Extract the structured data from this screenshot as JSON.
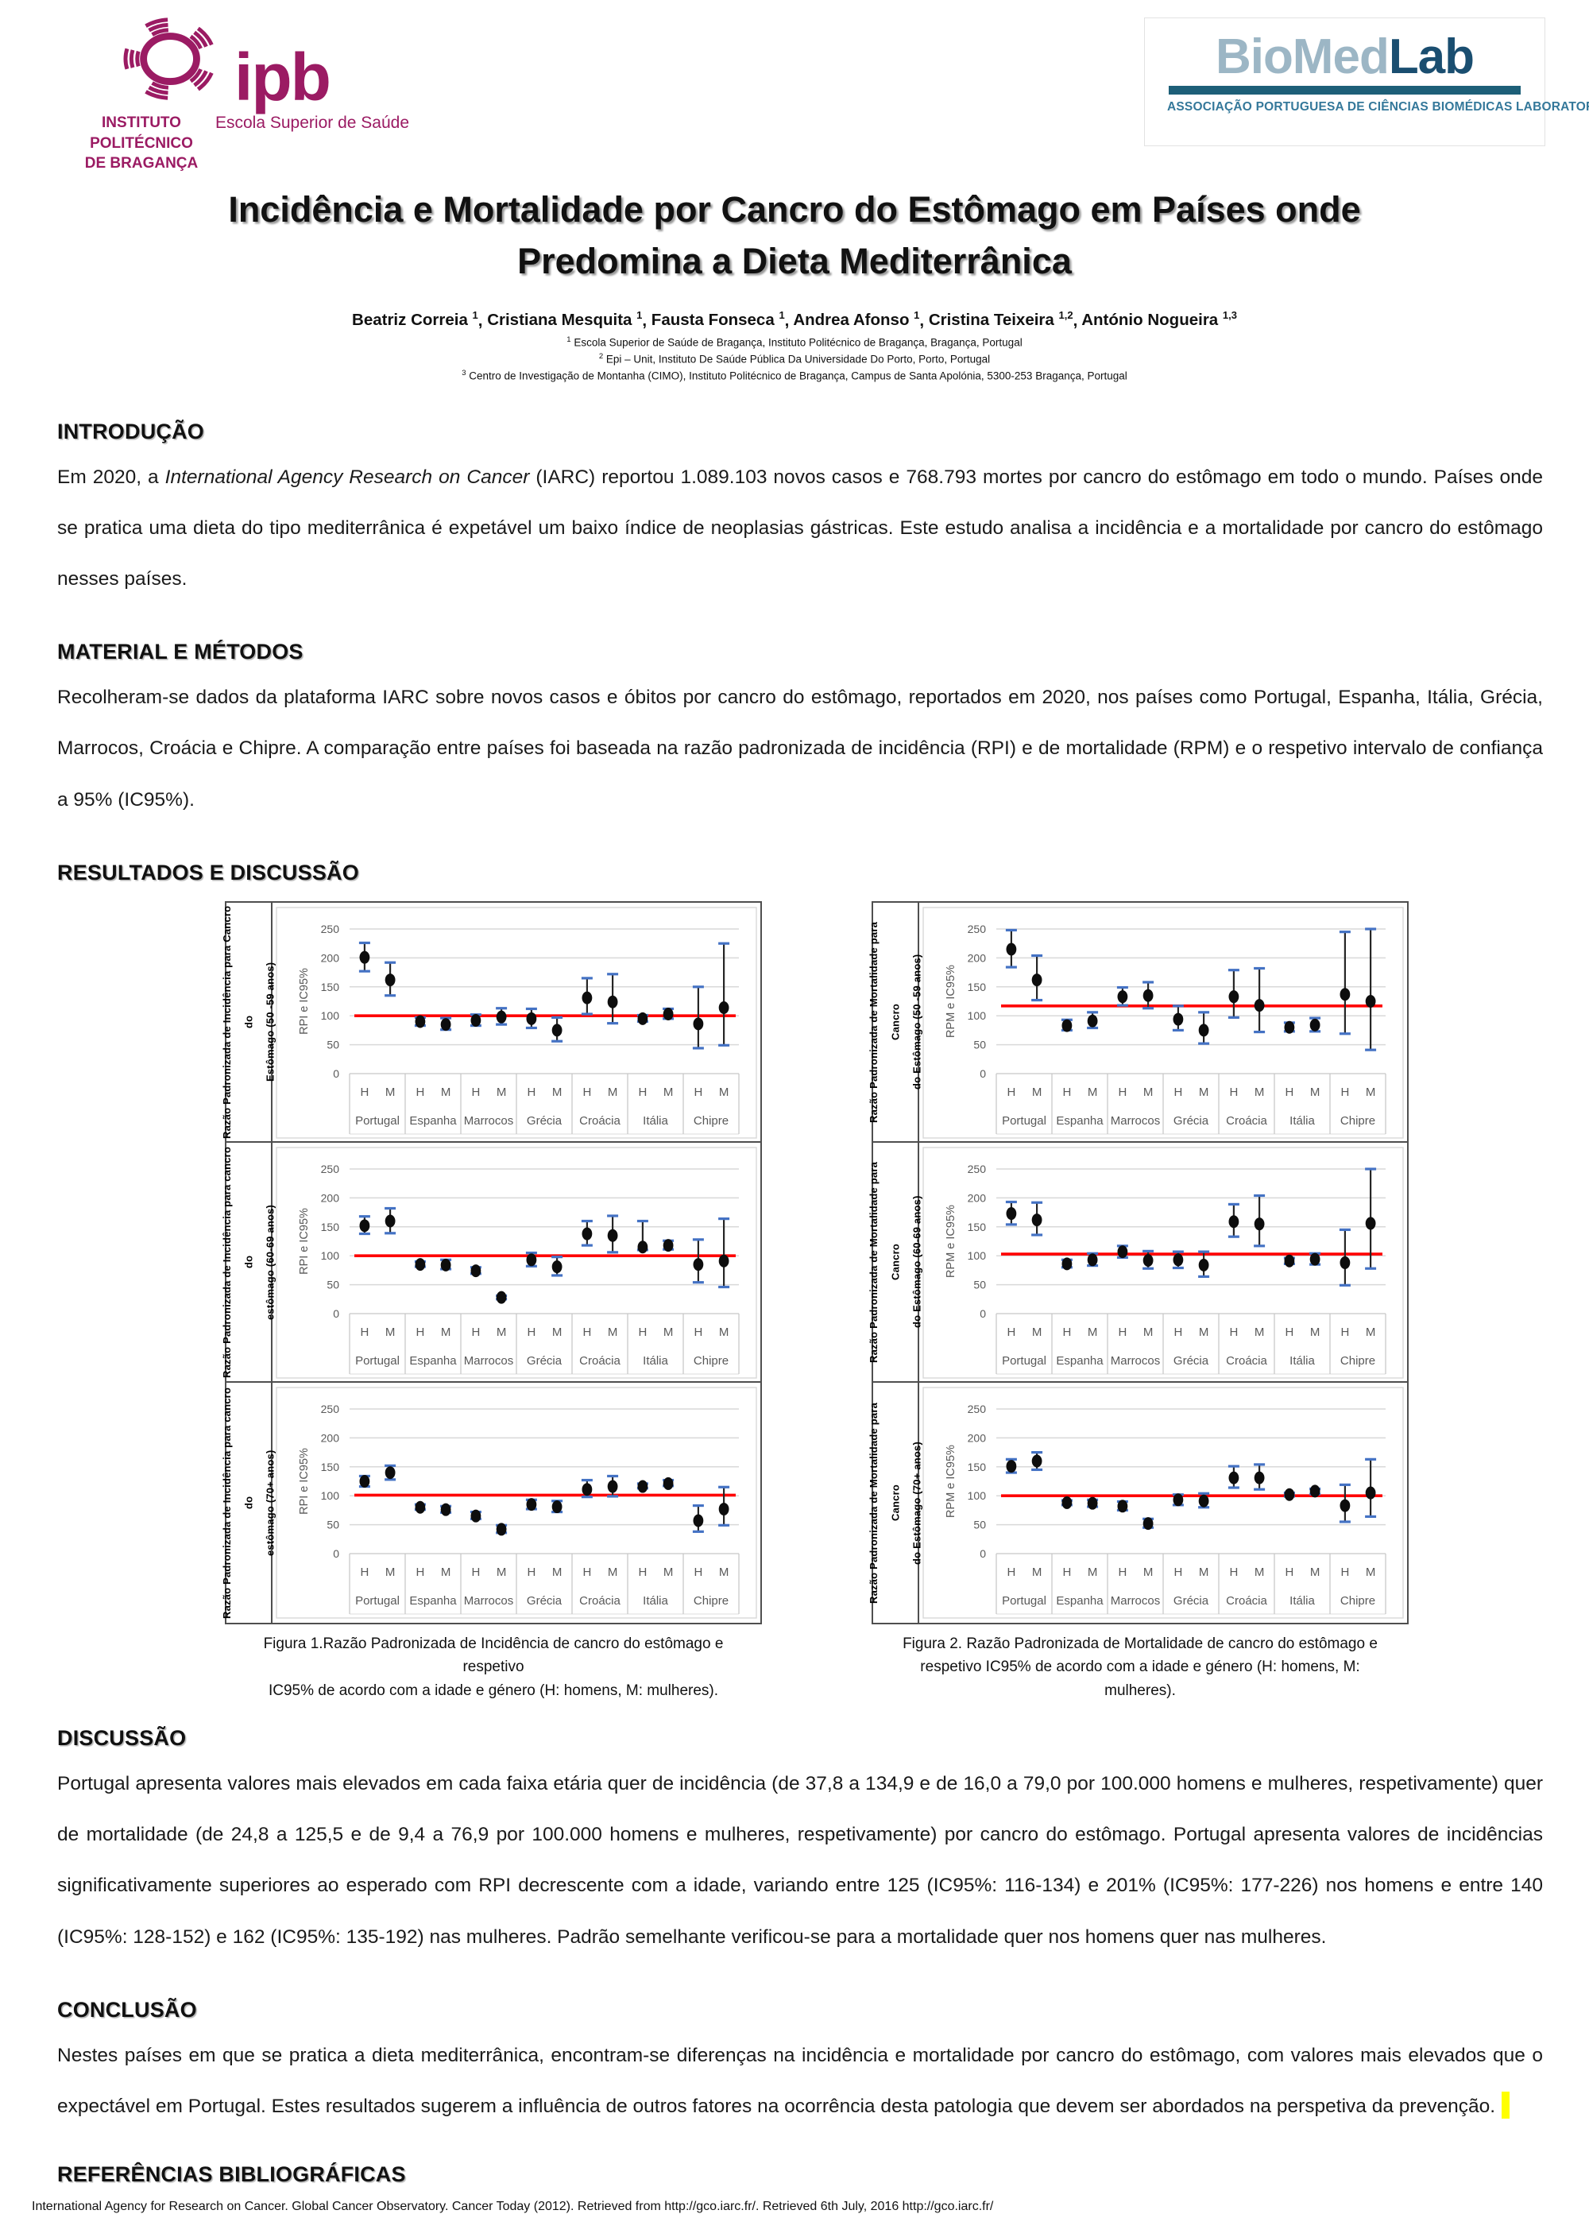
{
  "colors": {
    "ipb_magenta": "#9b1b63",
    "biomed_light": "#9cb6c5",
    "biomed_dark": "#1a4e70",
    "biomed_bar": "#1d5f78",
    "biomed_subtitle": "#34789a",
    "reference_line_red": "#ff0000",
    "ci_cap_blue": "#4472c4",
    "marker_black": "#0d0d0d",
    "gridline_gray": "#d9d9d9",
    "axis_text_gray": "#595959",
    "highlight_yellow": "#ffff00"
  },
  "header": {
    "ipb": {
      "acronym": "ipb",
      "institute_line1": "INSTITUTO POLITÉCNICO",
      "institute_line2": "DE BRAGANÇA",
      "school": "Escola Superior de Saúde"
    },
    "biomedlab": {
      "word_light": "BioMed",
      "word_dark": "Lab",
      "subtitle": "ASSOCIAÇÃO PORTUGUESA DE CIÊNCIAS BIOMÉDICAS LABORATORIAIS"
    }
  },
  "title": {
    "line1": "Incidência e Mortalidade por Cancro do Estômago em Países onde",
    "line2": "Predomina a Dieta Mediterrânica"
  },
  "authors": [
    {
      "name": "Beatriz Correia",
      "sup": "1"
    },
    {
      "name": "Cristiana Mesquita",
      "sup": "1"
    },
    {
      "name": "Fausta Fonseca",
      "sup": "1"
    },
    {
      "name": "Andrea Afonso",
      "sup": "1"
    },
    {
      "name": "Cristina Teixeira",
      "sup": "1,2"
    },
    {
      "name": "António Nogueira",
      "sup": "1,3"
    }
  ],
  "affiliations": [
    {
      "sup": "1",
      "text": "Escola Superior de Saúde de Bragança, Instituto Politécnico de Bragança, Bragança, Portugal"
    },
    {
      "sup": "2",
      "text": "Epi – Unit, Instituto De Saúde Pública Da Universidade Do Porto, Porto, Portugal"
    },
    {
      "sup": "3",
      "text": "Centro de Investigação de Montanha (CIMO), Instituto Politécnico de Bragança, Campus de Santa Apolónia, 5300-253 Bragança, Portugal"
    }
  ],
  "sections": {
    "introducao": {
      "heading": "INTRODUÇÃO",
      "text_before_italic": "Em 2020, a ",
      "italic": "International Agency Research on Cancer",
      "text_after_italic": " (IARC)  reportou 1.089.103 novos casos e 768.793 mortes por cancro do estômago em todo o mundo. Países onde se pratica uma dieta do tipo mediterrânica é expetável um baixo índice de neoplasias gástricas. Este estudo analisa a incidência e a mortalidade por cancro do estômago nesses países."
    },
    "material": {
      "heading": "MATERIAL E MÉTODOS",
      "text": "Recolheram-se dados da plataforma IARC sobre novos casos e óbitos por cancro do estômago, reportados em 2020, nos países como Portugal, Espanha, Itália, Grécia, Marrocos, Croácia e Chipre. A comparação entre países foi baseada na razão padronizada de incidência (RPI) e de mortalidade (RPM) e o respetivo intervalo de confiança a 95% (IC95%)."
    },
    "resultados": {
      "heading": "RESULTADOS E DISCUSSÃO"
    },
    "discussao": {
      "heading": "DISCUSSÃO",
      "text": "Portugal  apresenta valores mais elevados em cada faixa etária quer de incidência (de 37,8 a 134,9 e de 16,0 a 79,0 por 100.000 homens e mulheres, respetivamente) quer de mortalidade (de 24,8 a 125,5 e de 9,4 a 76,9 por 100.000 homens e mulheres, respetivamente) por cancro do estômago. Portugal apresenta valores de incidências significativamente superiores ao esperado com RPI decrescente com a idade, variando entre 125 (IC95%: 116-134) e 201% (IC95%: 177-226) nos homens e entre 140 (IC95%: 128-152) e 162 (IC95%: 135-192) nas mulheres. Padrão semelhante verificou-se para a mortalidade quer nos homens quer nas mulheres."
    },
    "conclusao": {
      "heading": "CONCLUSÃO",
      "text": "Nestes países em que se pratica a dieta mediterrânica, encontram-se diferenças na incidência e mortalidade por cancro do estômago, com valores mais elevados que o expectável em Portugal. Estes resultados sugerem a influência de outros fatores na ocorrência desta patologia que devem ser abordados na perspetiva da prevenção."
    },
    "referencias": {
      "heading": "REFERÊNCIAS BIBLIOGRÁFICAS",
      "text": "International Agency for Research on Cancer. Global Cancer Observatory. Cancer Today (2012). Retrieved from http://gco.iarc.fr/.  Retrieved 6th July, 2016 http://gco.iarc.fr/"
    }
  },
  "figures": [
    {
      "caption_line1": "Figura 1.Razão Padronizada de Incidência de cancro do estômago e respetivo",
      "caption_line2": "IC95% de acordo com a idade e género (H: homens, M: mulheres)."
    },
    {
      "caption_line1": "Figura 2. Razão Padronizada de Mortalidade de cancro do estômago e",
      "caption_line2": "respetivo IC95% de acordo com a idade e género (H: homens, M: mulheres)."
    }
  ],
  "chart_data": [
    {
      "id": "rpi-50-59",
      "figure": 1,
      "type": "scatter",
      "side_label": [
        "Razão Padronizada de Incidência para Cancro do",
        "Estômago (50 -59 anos)"
      ],
      "ylabel": "RPI e IC95%",
      "yticks": [
        0,
        50,
        100,
        150,
        200,
        250
      ],
      "ylim": [
        0,
        260
      ],
      "grid": true,
      "reference_line": 100,
      "categories": [
        "Portugal",
        "Espanha",
        "Marrocos",
        "Grécia",
        "Croácia",
        "Itália",
        "Chipre"
      ],
      "sex_labels": [
        "H",
        "M"
      ],
      "H": [
        [
          201,
          177,
          226
        ],
        [
          90,
          83,
          97
        ],
        [
          92,
          83,
          102
        ],
        [
          95,
          79,
          112
        ],
        [
          131,
          103,
          165
        ],
        [
          95,
          90,
          101
        ],
        [
          86,
          44,
          150
        ]
      ],
      "M": [
        [
          162,
          135,
          192
        ],
        [
          85,
          76,
          96
        ],
        [
          98,
          85,
          113
        ],
        [
          75,
          56,
          97
        ],
        [
          124,
          87,
          172
        ],
        [
          103,
          95,
          112
        ],
        [
          114,
          49,
          225
        ]
      ]
    },
    {
      "id": "rpm-50-59",
      "figure": 2,
      "type": "scatter",
      "side_label": [
        "Razão Padronizada de Mortalidade para Cancro",
        "do Estômago (50 -59 anos)"
      ],
      "ylabel": "RPM e IC95%",
      "yticks": [
        0,
        50,
        100,
        150,
        200,
        250
      ],
      "ylim": [
        0,
        260
      ],
      "grid": true,
      "reference_line": 117,
      "categories": [
        "Portugal",
        "Espanha",
        "Marrocos",
        "Grécia",
        "Croácia",
        "Itália",
        "Chipre"
      ],
      "sex_labels": [
        "H",
        "M"
      ],
      "H": [
        [
          215,
          184,
          248
        ],
        [
          83,
          75,
          93
        ],
        [
          133,
          118,
          149
        ],
        [
          94,
          75,
          117
        ],
        [
          133,
          97,
          179
        ],
        [
          80,
          73,
          88
        ],
        [
          137,
          69,
          245
        ]
      ],
      "M": [
        [
          162,
          127,
          204
        ],
        [
          91,
          79,
          106
        ],
        [
          135,
          113,
          158
        ],
        [
          75,
          52,
          106
        ],
        [
          118,
          72,
          182
        ],
        [
          84,
          73,
          96
        ],
        [
          125,
          41,
          250
        ]
      ]
    },
    {
      "id": "rpi-60-69",
      "figure": 1,
      "type": "scatter",
      "side_label": [
        "Razão Padronizada de Incidência para cancro do",
        "estômago (60-69 anos)"
      ],
      "ylabel": "RPI e IC95%",
      "yticks": [
        0,
        50,
        100,
        150,
        200,
        250
      ],
      "ylim": [
        0,
        260
      ],
      "grid": true,
      "reference_line": 100,
      "categories": [
        "Portugal",
        "Espanha",
        "Marrocos",
        "Grécia",
        "Croácia",
        "Itália",
        "Chipre"
      ],
      "sex_labels": [
        "H",
        "M"
      ],
      "H": [
        [
          152,
          138,
          168
        ],
        [
          85,
          81,
          90
        ],
        [
          74,
          69,
          80
        ],
        [
          93,
          82,
          105
        ],
        [
          138,
          118,
          160
        ],
        [
          115,
          110,
          160
        ],
        [
          85,
          54,
          128
        ]
      ],
      "M": [
        [
          160,
          139,
          182
        ],
        [
          84,
          77,
          93
        ],
        [
          28,
          25,
          31
        ],
        [
          81,
          66,
          98
        ],
        [
          135,
          106,
          169
        ],
        [
          118,
          111,
          126
        ],
        [
          91,
          46,
          164
        ]
      ]
    },
    {
      "id": "rpm-60-69",
      "figure": 2,
      "type": "scatter",
      "side_label": [
        "Razão Padronizada de Mortalidade para Cancro",
        "do Estômago (60-69 anos)"
      ],
      "ylabel": "RPM e IC95%",
      "yticks": [
        0,
        50,
        100,
        150,
        200,
        250
      ],
      "ylim": [
        0,
        260
      ],
      "grid": true,
      "reference_line": 103,
      "categories": [
        "Portugal",
        "Espanha",
        "Marrocos",
        "Grécia",
        "Croácia",
        "Itália",
        "Chipre"
      ],
      "sex_labels": [
        "H",
        "M"
      ],
      "H": [
        [
          173,
          154,
          193
        ],
        [
          86,
          80,
          93
        ],
        [
          107,
          97,
          117
        ],
        [
          93,
          79,
          107
        ],
        [
          159,
          133,
          189
        ],
        [
          91,
          86,
          96
        ],
        [
          88,
          49,
          145
        ]
      ],
      "M": [
        [
          162,
          136,
          192
        ],
        [
          93,
          83,
          104
        ],
        [
          92,
          78,
          108
        ],
        [
          84,
          64,
          107
        ],
        [
          155,
          117,
          204
        ],
        [
          94,
          85,
          104
        ],
        [
          156,
          78,
          250
        ]
      ]
    },
    {
      "id": "rpi-70",
      "figure": 1,
      "type": "scatter",
      "side_label": [
        "Razão Padronizada de Incidência para cancro do",
        "estômago (70+ anos)"
      ],
      "ylabel": "RPI e IC95%",
      "yticks": [
        0,
        50,
        100,
        150,
        200,
        250
      ],
      "ylim": [
        0,
        260
      ],
      "grid": true,
      "reference_line": 101,
      "categories": [
        "Portugal",
        "Espanha",
        "Marrocos",
        "Grécia",
        "Croácia",
        "Itália",
        "Chipre"
      ],
      "sex_labels": [
        "H",
        "M"
      ],
      "H": [
        [
          125,
          116,
          134
        ],
        [
          80,
          76,
          85
        ],
        [
          65,
          60,
          72
        ],
        [
          85,
          77,
          93
        ],
        [
          111,
          98,
          127
        ],
        [
          116,
          113,
          121
        ],
        [
          57,
          38,
          83
        ]
      ],
      "M": [
        [
          140,
          128,
          152
        ],
        [
          76,
          71,
          82
        ],
        [
          42,
          36,
          49
        ],
        [
          81,
          72,
          91
        ],
        [
          116,
          99,
          134
        ],
        [
          121,
          117,
          127
        ],
        [
          77,
          49,
          115
        ]
      ]
    },
    {
      "id": "rpm-70",
      "figure": 2,
      "type": "scatter",
      "side_label": [
        "Razão Padronizada de Mortalidade para Cancro",
        "do Estômago (70+ anos)"
      ],
      "ylabel": "RPM e IC95%",
      "yticks": [
        0,
        50,
        100,
        150,
        200,
        250
      ],
      "ylim": [
        0,
        260
      ],
      "grid": true,
      "reference_line": 100,
      "categories": [
        "Portugal",
        "Espanha",
        "Marrocos",
        "Grécia",
        "Croácia",
        "Itália",
        "Chipre"
      ],
      "sex_labels": [
        "H",
        "M"
      ],
      "H": [
        [
          151,
          140,
          163
        ],
        [
          88,
          84,
          92
        ],
        [
          82,
          75,
          90
        ],
        [
          93,
          84,
          102
        ],
        [
          131,
          114,
          151
        ],
        [
          102,
          99,
          105
        ],
        [
          83,
          55,
          119
        ]
      ],
      "M": [
        [
          160,
          145,
          175
        ],
        [
          87,
          81,
          93
        ],
        [
          52,
          45,
          60
        ],
        [
          91,
          80,
          104
        ],
        [
          131,
          111,
          154
        ],
        [
          108,
          103,
          112
        ],
        [
          105,
          64,
          163
        ]
      ]
    }
  ]
}
